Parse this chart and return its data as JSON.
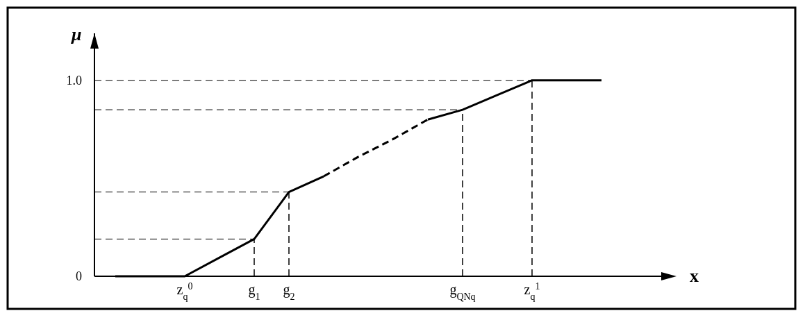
{
  "chart_data": {
    "type": "line",
    "xlabel": "x",
    "ylabel": "μ",
    "categories": [
      null,
      null,
      "z$_{q}$$^{0}$",
      null,
      "g$_{1}$",
      "g$_{2}$",
      null,
      null,
      null,
      null,
      "g$_{QNq}$",
      null,
      "z$_{q}$$^{1}$",
      null,
      null
    ],
    "ylim": [
      0,
      1.24
    ],
    "yticks": [
      0,
      {
        "value": 1,
        "label": "1.0"
      }
    ],
    "grid": false,
    "marker": "none",
    "series": [
      {
        "color": "#000000",
        "line_style": "solid",
        "values": [
          0,
          0,
          0,
          0.095,
          0.19,
          0.43,
          0.51,
          null,
          null,
          null,
          null,
          null,
          null,
          null,
          null
        ]
      },
      {
        "color": "#000000",
        "line_style": "dashed",
        "values": [
          null,
          null,
          null,
          null,
          null,
          null,
          0.51,
          0.61,
          0.7,
          0.8,
          null,
          null,
          null,
          null,
          null
        ]
      },
      {
        "color": "#000000",
        "line_style": "solid",
        "values": [
          null,
          null,
          null,
          null,
          null,
          null,
          null,
          null,
          null,
          0.8,
          0.85,
          0.925,
          1,
          1,
          1
        ]
      }
    ],
    "ref_lines": [
      {
        "axis": "y",
        "value": 0.19,
        "line_style": "dashed"
      },
      {
        "axis": "y",
        "value": 0.43,
        "line_style": "dashed"
      },
      {
        "axis": "y",
        "value": 0.85,
        "line_style": "dashed"
      },
      {
        "axis": "y",
        "value": 1,
        "line_style": "dashed"
      },
      {
        "axis": "x",
        "value": "g$_{1}$",
        "line_style": "dashed"
      },
      {
        "axis": "x",
        "value": "g$_{2}$",
        "line_style": "dashed"
      },
      {
        "axis": "x",
        "value": "g$_{QNq}$",
        "line_style": "dashed"
      },
      {
        "axis": "x",
        "value": "z$_{q}$$^{1}$",
        "line_style": "dashed"
      }
    ]
  }
}
